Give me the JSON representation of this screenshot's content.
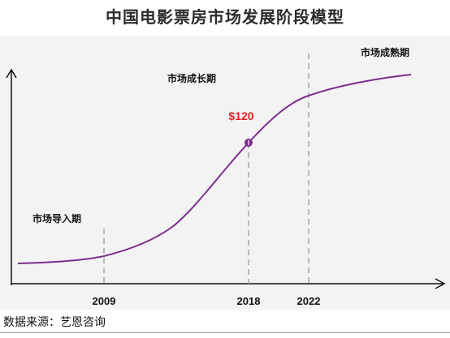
{
  "title": "中国电影票房市场发展阶段模型",
  "source": "数据来源：艺恩咨询",
  "chart_data": {
    "type": "line",
    "title": "中国电影票房市场发展阶段模型",
    "xlabel": "",
    "ylabel": "",
    "x_ticks": [
      "2009",
      "2018",
      "2022"
    ],
    "stages": [
      "市场导入期",
      "市场成长期",
      "市场成熟期"
    ],
    "highlight": {
      "x": "2018",
      "label": "$120",
      "color": "#e52020"
    },
    "series_color": "#7b2d8e",
    "grid": false,
    "shape": "S-curve (growth model); y values not printed"
  }
}
